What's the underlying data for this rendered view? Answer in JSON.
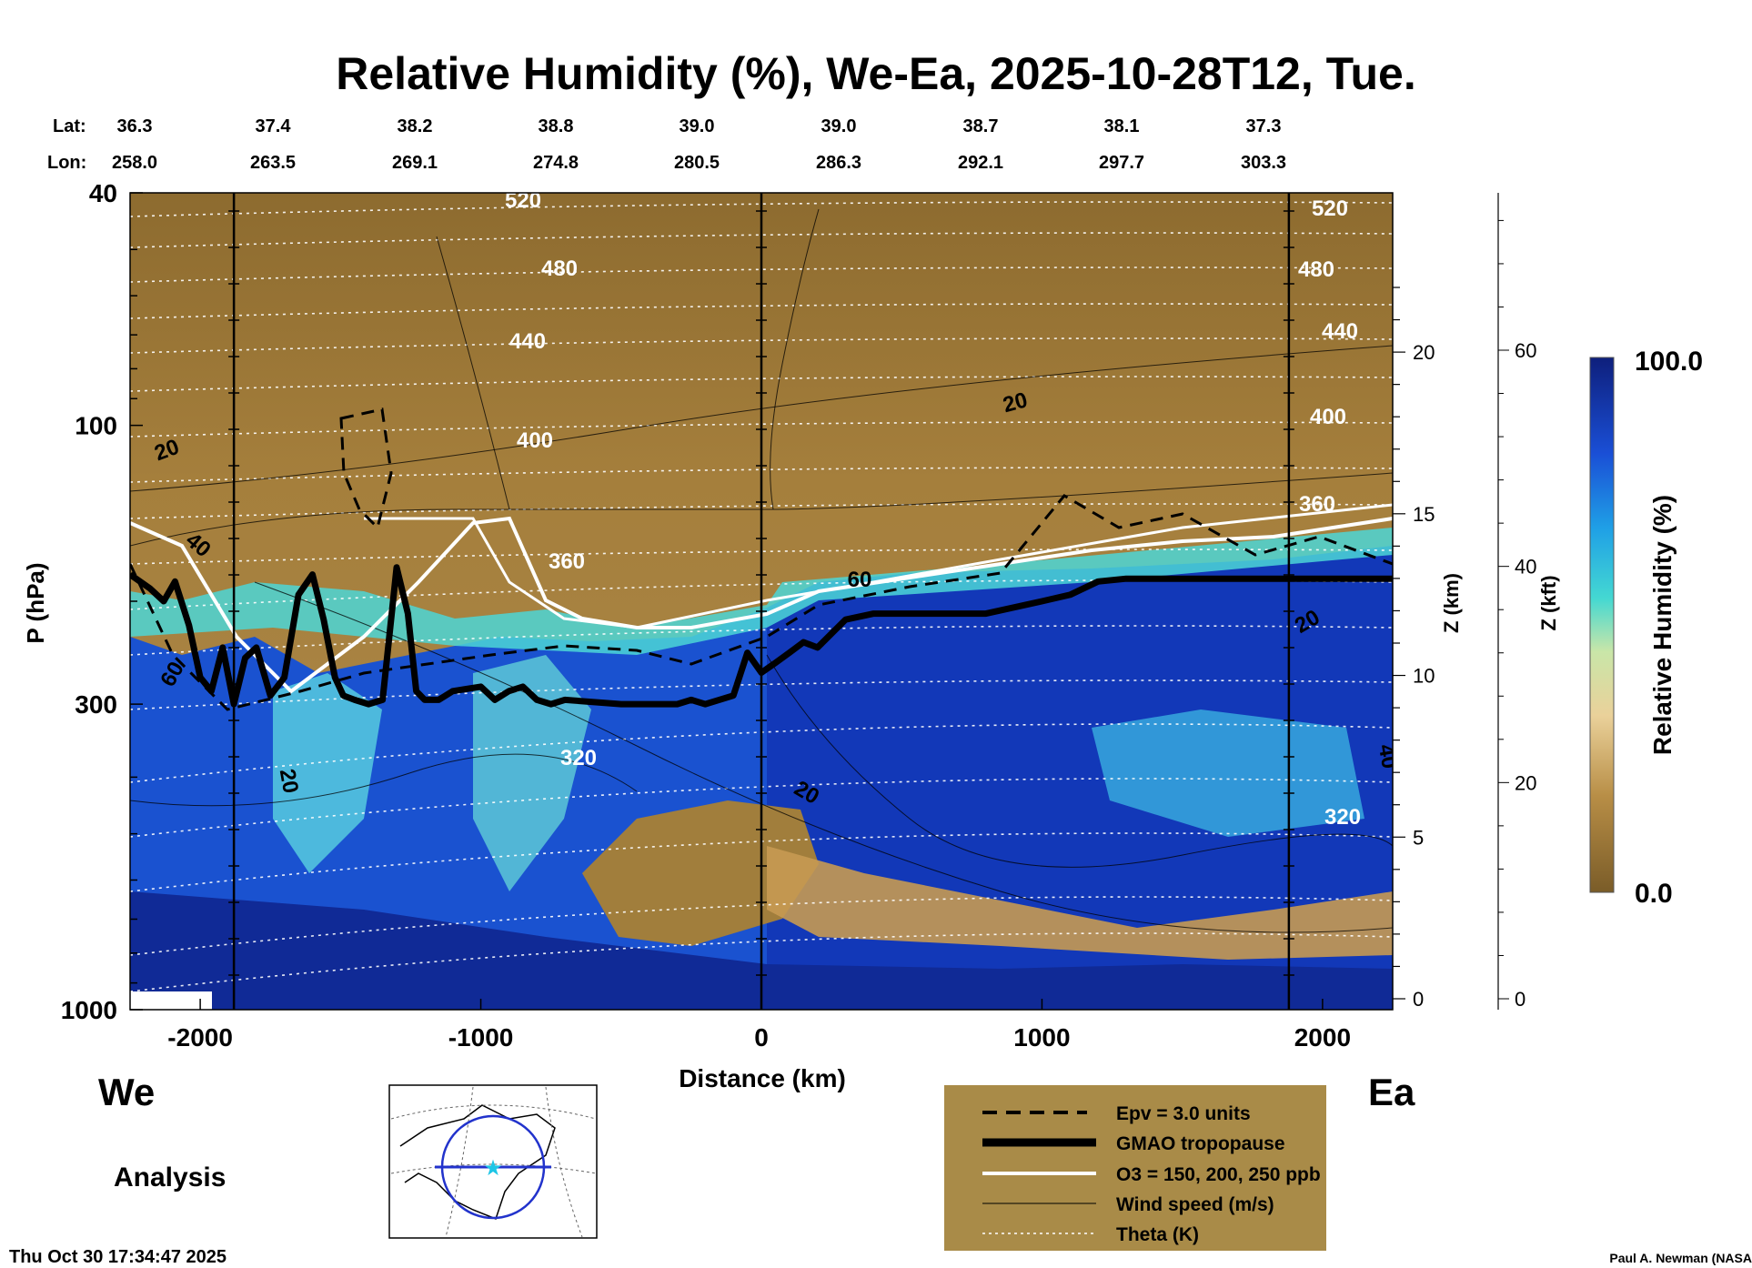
{
  "chart_data": {
    "type": "heatmap",
    "title": "Relative Humidity (%), We-Ea, 2025-10-28T12, Tue.",
    "xlabel": "Distance (km)",
    "ylabel": "P (hPa)",
    "y2label": "Z (km)",
    "y3label": "Z (kft)",
    "colorbar_label": "Relative Humidity (%)",
    "colorbar_range": [
      0.0,
      100.0
    ],
    "colorbar_max_label": "100.0",
    "colorbar_min_label": "0.0",
    "xlim": [
      -2250,
      2250
    ],
    "ylim": [
      1000,
      40
    ],
    "y_scale": "log",
    "x_ticks": [
      -2000,
      -1000,
      0,
      1000,
      2000
    ],
    "x_tick_labels": [
      "-2000",
      "-1000",
      "0",
      "1000",
      "2000"
    ],
    "p_ticks": [
      40,
      100,
      300,
      1000
    ],
    "p_tick_labels": [
      "40",
      "100",
      "300",
      "1000"
    ],
    "z_km_ticks": [
      0,
      5,
      10,
      15,
      20
    ],
    "z_km_tick_labels": [
      "0",
      "5",
      "10",
      "15",
      "20"
    ],
    "z_kft_ticks": [
      0,
      20,
      40,
      60
    ],
    "z_kft_tick_labels": [
      "0",
      "20",
      "40",
      "60"
    ],
    "lat_label": "Lat:",
    "lon_label": "Lon:",
    "lat": [
      "36.3",
      "37.4",
      "38.2",
      "38.8",
      "39.0",
      "39.0",
      "38.7",
      "38.1",
      "37.3"
    ],
    "lon": [
      "258.0",
      "263.5",
      "269.1",
      "274.8",
      "280.5",
      "286.3",
      "292.1",
      "297.7",
      "303.3"
    ],
    "vertical_lines_km": [
      -1880,
      0,
      1880
    ],
    "tropopause": {
      "x": [
        -2250,
        -2180,
        -2130,
        -2090,
        -2040,
        -2000,
        -1960,
        -1920,
        -1880,
        -1840,
        -1800,
        -1750,
        -1700,
        -1650,
        -1600,
        -1560,
        -1520,
        -1490,
        -1450,
        -1400,
        -1350,
        -1300,
        -1260,
        -1230,
        -1200,
        -1150,
        -1100,
        -1000,
        -950,
        -900,
        -850,
        -800,
        -750,
        -700,
        -500,
        -300,
        -250,
        -200,
        -100,
        -50,
        0,
        50,
        100,
        150,
        200,
        300,
        400,
        800,
        1000,
        1100,
        1200,
        1300,
        1500,
        2000,
        2250
      ],
      "p": [
        180,
        190,
        200,
        185,
        220,
        270,
        285,
        240,
        300,
        250,
        240,
        290,
        270,
        195,
        180,
        215,
        270,
        290,
        295,
        300,
        295,
        175,
        210,
        285,
        295,
        295,
        285,
        280,
        295,
        285,
        280,
        295,
        300,
        295,
        300,
        300,
        295,
        300,
        290,
        245,
        265,
        255,
        245,
        235,
        240,
        215,
        210,
        210,
        200,
        195,
        185,
        183,
        183,
        183,
        183
      ]
    },
    "ozone_contours_ppb": [
      "150",
      "200",
      "250"
    ],
    "wind_contour_labels": [
      "20",
      "40",
      "60",
      "20",
      "20",
      "20",
      "40",
      "20",
      "60"
    ],
    "theta_contour_labels": [
      "520",
      "480",
      "440",
      "400",
      "360",
      "320",
      "520",
      "480",
      "440",
      "400",
      "360",
      "320"
    ],
    "footer": {
      "west": "We",
      "east": "Ea",
      "mode": "Analysis",
      "timestamp": "Thu Oct 30 17:34:47 2025",
      "credit": "Paul A. Newman (NASA"
    },
    "legend": {
      "placement": "bottom-right",
      "background": "#a98b48",
      "items": [
        {
          "label": "Epv = 3.0 units",
          "style": "dashed-thick"
        },
        {
          "label": "GMAO tropopause",
          "style": "solid-heavy"
        },
        {
          "label": "O3 = 150, 200, 250 ppb",
          "style": "solid-white"
        },
        {
          "label": "Wind speed (m/s)",
          "style": "solid-thin"
        },
        {
          "label": "Theta (K)",
          "style": "dotted-white"
        }
      ]
    },
    "colors": {
      "dry": "#8a6a2e",
      "moist": "#0e2a9a",
      "tropopause": "#000000",
      "ozone": "#ffffff"
    }
  }
}
